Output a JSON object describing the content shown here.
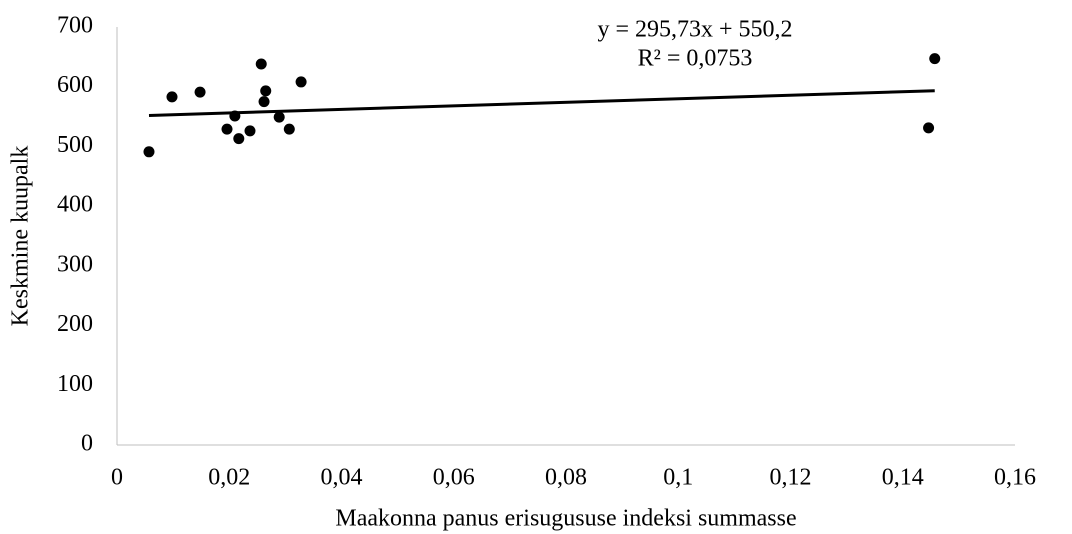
{
  "chart_data": {
    "type": "scatter",
    "x_label": "Maakonna panus erisugususe indeksi summasse",
    "y_label": "Keskmine kuupalk",
    "series": [
      {
        "color": "#000000",
        "x": [
          0.0057,
          0.0098,
          0.0148,
          0.0196,
          0.021,
          0.0217,
          0.0237,
          0.0257,
          0.0262,
          0.0265,
          0.0289,
          0.0307,
          0.0328,
          0.1446,
          0.1457
        ],
        "values": [
          491,
          583,
          591,
          529,
          551,
          513,
          526,
          638,
          575,
          593,
          549,
          529,
          608,
          531,
          647
        ]
      }
    ],
    "trendline": {
      "slope": 295.73,
      "intercept": 550.2,
      "color": "#000000",
      "equation": "y = 295,73x + 550,2",
      "r_squared": "R² = 0,0753"
    },
    "xlim": [
      0,
      0.16
    ],
    "xticks": [
      0,
      {
        "value": 0.02,
        "label": "0,02"
      },
      {
        "value": 0.04,
        "label": "0,04"
      },
      {
        "value": 0.06,
        "label": "0,06"
      },
      {
        "value": 0.08,
        "label": "0,08"
      },
      {
        "value": 0.1,
        "label": "0,1"
      },
      {
        "value": 0.12,
        "label": "0,12"
      },
      {
        "value": 0.14,
        "label": "0,14"
      },
      {
        "value": 0.16,
        "label": "0,16"
      }
    ],
    "ylim": [
      0,
      700
    ],
    "yticks": [
      0,
      100,
      200,
      300,
      400,
      500,
      600,
      700
    ],
    "grid": false
  }
}
